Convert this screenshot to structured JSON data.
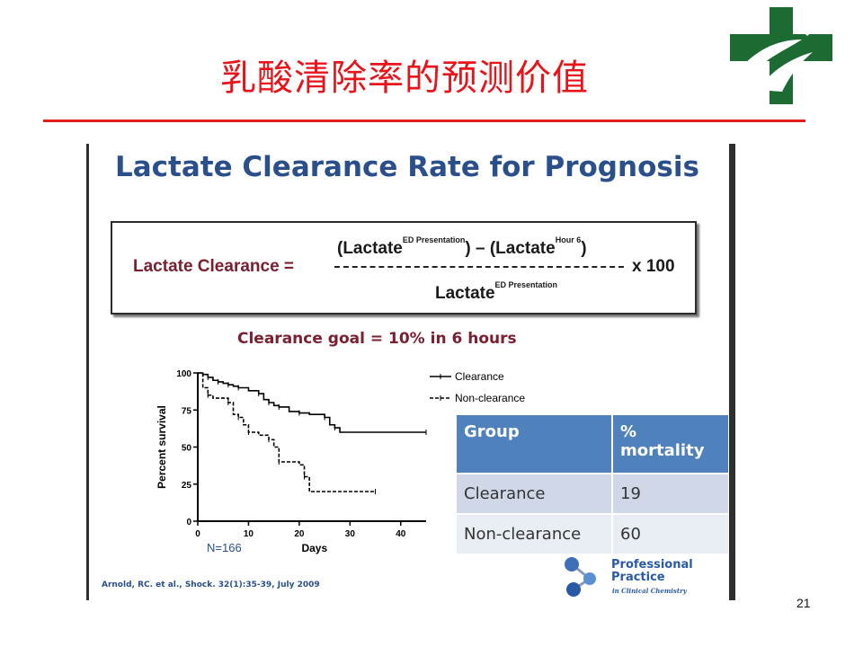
{
  "slide": {
    "title": "乳酸清除率的预测价值",
    "page_number": "21"
  },
  "panel": {
    "title": "Lactate Clearance Rate for Prognosis",
    "formula": {
      "label": "Lactate Clearance  =",
      "num_left": "(Lactate",
      "num_left_sup": "ED Presentation",
      "num_mid": ") – (Lactate",
      "num_mid_sup": "Hour 6",
      "num_right": ")",
      "den": "Lactate",
      "den_sup": "ED Presentation",
      "multiplier": "x 100"
    },
    "goal": "Clearance goal = 10% in 6 hours",
    "table": {
      "headers": [
        "Group",
        "% mortality"
      ],
      "rows": [
        [
          "Clearance",
          "19"
        ],
        [
          "Non-clearance",
          "60"
        ]
      ]
    },
    "logo_text": {
      "line1": "Professional",
      "line2": "Practice",
      "line3": "in Clinical Chemistry"
    },
    "citation": "Arnold, RC. et al., Shock. 32(1):35-39, July 2009"
  },
  "chart_data": {
    "type": "line",
    "ylabel": "Percent survival",
    "xlabel": "Days",
    "xlim": [
      0,
      45
    ],
    "ylim": [
      0,
      100
    ],
    "x_ticks": [
      "0",
      "10",
      "20",
      "30",
      "40"
    ],
    "y_ticks": [
      "0",
      "25",
      "50",
      "75",
      "100"
    ],
    "annotation": "N=166",
    "legend_position": "top-right",
    "series": [
      {
        "name": "Clearance",
        "style": "solid",
        "points": [
          [
            0,
            100
          ],
          [
            1,
            99
          ],
          [
            2,
            97
          ],
          [
            3,
            95
          ],
          [
            4,
            94
          ],
          [
            5,
            93
          ],
          [
            6,
            92
          ],
          [
            7,
            91
          ],
          [
            8,
            90
          ],
          [
            10,
            88
          ],
          [
            12,
            86
          ],
          [
            13,
            82
          ],
          [
            14,
            80
          ],
          [
            15,
            78
          ],
          [
            16,
            77
          ],
          [
            18,
            74
          ],
          [
            20,
            73
          ],
          [
            22,
            72
          ],
          [
            25,
            70
          ],
          [
            26,
            65
          ],
          [
            27,
            63
          ],
          [
            28,
            60
          ],
          [
            45,
            60
          ]
        ]
      },
      {
        "name": "Non-clearance",
        "style": "dashed",
        "points": [
          [
            0,
            100
          ],
          [
            1,
            90
          ],
          [
            2,
            85
          ],
          [
            3,
            83
          ],
          [
            6,
            80
          ],
          [
            7,
            72
          ],
          [
            8,
            70
          ],
          [
            9,
            65
          ],
          [
            10,
            60
          ],
          [
            12,
            58
          ],
          [
            14,
            55
          ],
          [
            15,
            50
          ],
          [
            16,
            40
          ],
          [
            20,
            38
          ],
          [
            21,
            30
          ],
          [
            22,
            20
          ],
          [
            35,
            20
          ]
        ]
      }
    ]
  },
  "colors": {
    "slide_title": "#e8141b",
    "panel_title": "#2a4f8a",
    "label_maroon": "#7b2030",
    "table_header": "#4f81bd",
    "logo_green": "#1c6b32"
  }
}
